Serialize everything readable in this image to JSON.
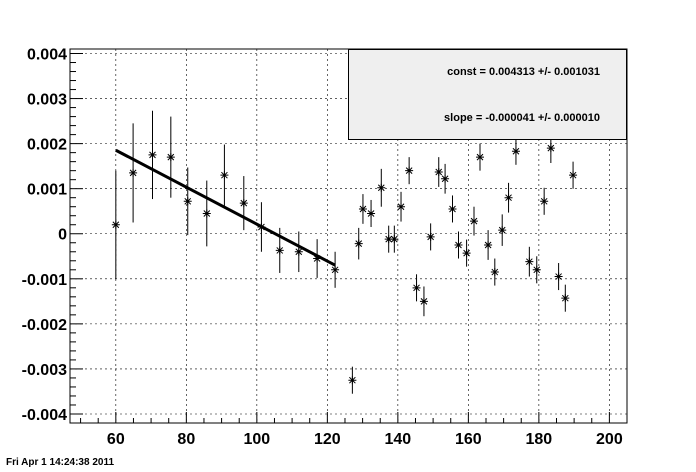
{
  "chart_data": {
    "type": "scatter",
    "title": "",
    "xlabel": "",
    "ylabel": "",
    "xlim": [
      47,
      205
    ],
    "ylim": [
      -0.0042,
      0.0041
    ],
    "x_ticks": [
      60,
      80,
      100,
      120,
      140,
      160,
      180,
      200
    ],
    "x_tick_labels": [
      "60",
      "80",
      "100",
      "120",
      "140",
      "160",
      "180",
      "200"
    ],
    "y_ticks": [
      -0.004,
      -0.003,
      -0.002,
      -0.001,
      0,
      0.001,
      0.002,
      0.003,
      0.004
    ],
    "y_tick_labels": [
      "-0.004",
      "-0.003",
      "-0.002",
      "-0.001",
      "0",
      "0.001",
      "0.002",
      "0.003",
      "0.004"
    ],
    "grid": true,
    "marker": "star",
    "series": [
      {
        "points": [
          {
            "x": 60.0,
            "y": 0.0002,
            "err": 0.0012
          },
          {
            "x": 64.9,
            "y": 0.00135,
            "err": 0.0011
          },
          {
            "x": 70.4,
            "y": 0.00175,
            "err": 0.00098
          },
          {
            "x": 75.6,
            "y": 0.0017,
            "err": 0.0009
          },
          {
            "x": 80.4,
            "y": 0.00072,
            "err": 0.00075
          },
          {
            "x": 85.8,
            "y": 0.00045,
            "err": 0.00073
          },
          {
            "x": 90.8,
            "y": 0.0013,
            "err": 0.00068
          },
          {
            "x": 96.3,
            "y": 0.00068,
            "err": 0.0006
          },
          {
            "x": 101.3,
            "y": 0.00015,
            "err": 0.00055
          },
          {
            "x": 106.5,
            "y": -0.00037,
            "err": 0.0005
          },
          {
            "x": 111.9,
            "y": -0.0004,
            "err": 0.00045
          },
          {
            "x": 117.1,
            "y": -0.00055,
            "err": 0.00043
          },
          {
            "x": 122.2,
            "y": -0.0008,
            "err": 0.0004
          },
          {
            "x": 127.1,
            "y": -0.00325,
            "err": 0.0003
          },
          {
            "x": 128.9,
            "y": -0.00022,
            "err": 0.00035
          },
          {
            "x": 130.1,
            "y": 0.00055,
            "err": 0.00033
          },
          {
            "x": 132.4,
            "y": 0.00045,
            "err": 0.0003
          },
          {
            "x": 135.3,
            "y": 0.00102,
            "err": 0.00042
          },
          {
            "x": 137.4,
            "y": -0.00012,
            "err": 0.0003
          },
          {
            "x": 139.0,
            "y": -0.00012,
            "err": 0.0003
          },
          {
            "x": 140.9,
            "y": 0.0006,
            "err": 0.00033
          },
          {
            "x": 143.2,
            "y": 0.0014,
            "err": 0.0003
          },
          {
            "x": 145.3,
            "y": -0.0012,
            "err": 0.0003
          },
          {
            "x": 147.4,
            "y": -0.0015,
            "err": 0.00033
          },
          {
            "x": 149.3,
            "y": -7e-05,
            "err": 0.0003
          },
          {
            "x": 151.6,
            "y": 0.00137,
            "err": 0.00033
          },
          {
            "x": 153.4,
            "y": 0.00122,
            "err": 0.00033
          },
          {
            "x": 155.5,
            "y": 0.00055,
            "err": 0.0003
          },
          {
            "x": 157.2,
            "y": -0.00025,
            "err": 0.0003
          },
          {
            "x": 159.5,
            "y": -0.00043,
            "err": 0.0003
          },
          {
            "x": 161.6,
            "y": 0.00028,
            "err": 0.00032
          },
          {
            "x": 163.3,
            "y": 0.0017,
            "err": 0.0003
          },
          {
            "x": 165.6,
            "y": -0.00025,
            "err": 0.00033
          },
          {
            "x": 167.5,
            "y": -0.00085,
            "err": 0.0003
          },
          {
            "x": 169.6,
            "y": 8e-05,
            "err": 0.00035
          },
          {
            "x": 171.4,
            "y": 0.0008,
            "err": 0.00033
          },
          {
            "x": 173.5,
            "y": 0.00183,
            "err": 0.0003
          },
          {
            "x": 177.3,
            "y": -0.00062,
            "err": 0.00033
          },
          {
            "x": 179.4,
            "y": -0.0008,
            "err": 0.0003
          },
          {
            "x": 181.5,
            "y": 0.00072,
            "err": 0.0003
          },
          {
            "x": 183.4,
            "y": 0.0019,
            "err": 0.00033
          },
          {
            "x": 185.6,
            "y": -0.00095,
            "err": 0.0003
          },
          {
            "x": 187.5,
            "y": -0.00143,
            "err": 0.0003
          },
          {
            "x": 189.7,
            "y": 0.0013,
            "err": 0.0003
          }
        ]
      }
    ],
    "fit": {
      "x_range": [
        60,
        122.2
      ],
      "const": 0.004313,
      "slope": -4.1e-05
    }
  },
  "stats": {
    "const_text": "const = 0.004313 +/- 0.001031",
    "slope_text": "slope = -0.000041 +/- 0.000010"
  },
  "footer": {
    "datestamp": "Fri Apr  1 14:24:38 2011"
  },
  "colors": {
    "frame": "#000000",
    "grid": "#000000",
    "stats_background": "#efefef"
  }
}
